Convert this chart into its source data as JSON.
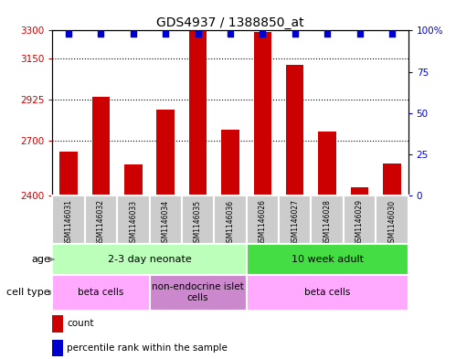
{
  "title": "GDS4937 / 1388850_at",
  "samples": [
    "GSM1146031",
    "GSM1146032",
    "GSM1146033",
    "GSM1146034",
    "GSM1146035",
    "GSM1146036",
    "GSM1146026",
    "GSM1146027",
    "GSM1146028",
    "GSM1146029",
    "GSM1146030"
  ],
  "counts": [
    2640,
    2940,
    2570,
    2870,
    3295,
    2760,
    3292,
    3115,
    2750,
    2445,
    2575
  ],
  "ylim_left": [
    2400,
    3300
  ],
  "ylim_right": [
    0,
    100
  ],
  "yticks_left": [
    2400,
    2700,
    2925,
    3150,
    3300
  ],
  "yticks_right": [
    0,
    25,
    50,
    75,
    100
  ],
  "bar_color": "#cc0000",
  "dot_color": "#0000cc",
  "age_groups": [
    {
      "label": "2-3 day neonate",
      "start": 0,
      "end": 5,
      "color": "#bbffbb"
    },
    {
      "label": "10 week adult",
      "start": 6,
      "end": 10,
      "color": "#44dd44"
    }
  ],
  "cell_type_groups": [
    {
      "label": "beta cells",
      "start": 0,
      "end": 2,
      "color": "#ffaaff"
    },
    {
      "label": "non-endocrine islet\ncells",
      "start": 3,
      "end": 5,
      "color": "#cc88cc"
    },
    {
      "label": "beta cells",
      "start": 6,
      "end": 10,
      "color": "#ffaaff"
    }
  ],
  "legend_count_color": "#cc0000",
  "legend_pct_color": "#0000cc",
  "legend_count_label": "count",
  "legend_pct_label": "percentile rank within the sample",
  "sample_box_color": "#cccccc",
  "arrow_color": "#888888",
  "border_color": "#000000"
}
